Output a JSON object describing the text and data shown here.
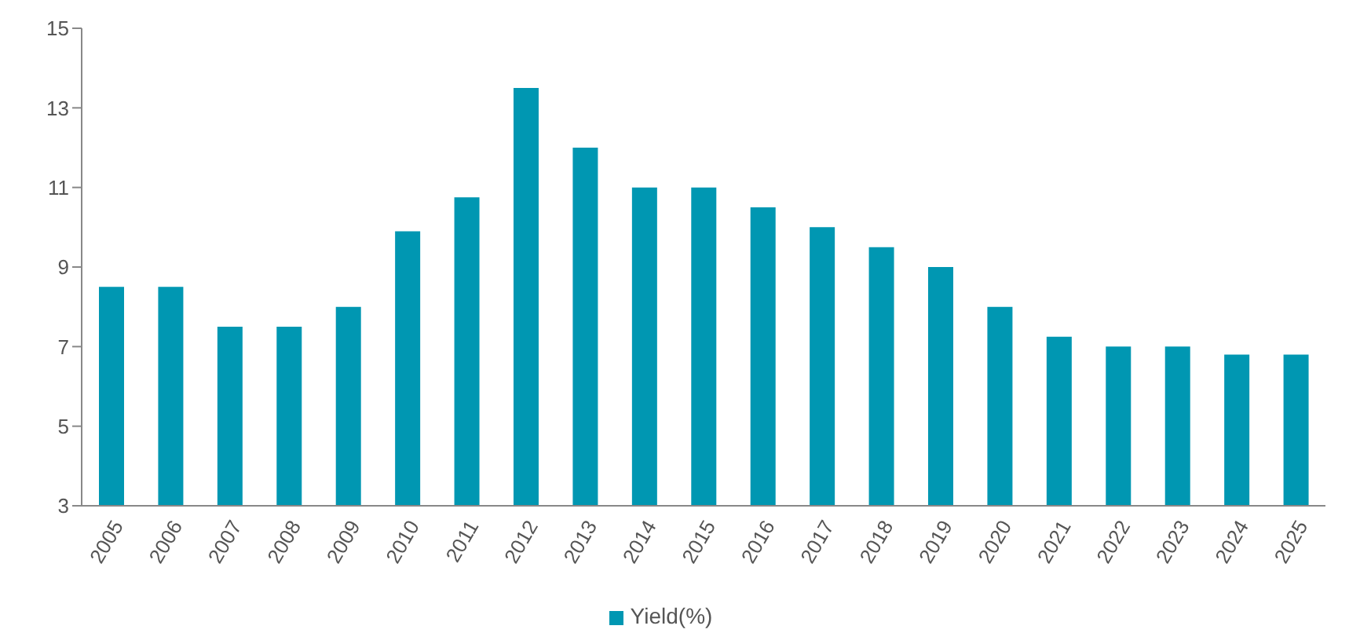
{
  "chart_data": {
    "type": "bar",
    "categories": [
      "2005",
      "2006",
      "2007",
      "2008",
      "2009",
      "2010",
      "2011",
      "2012",
      "2013",
      "2014",
      "2015",
      "2016",
      "2017",
      "2018",
      "2019",
      "2020",
      "2021",
      "2022",
      "2023",
      "2024",
      "2025"
    ],
    "series": [
      {
        "name": "Yield(%)",
        "color": "#0097b2",
        "values": [
          8.5,
          8.5,
          7.5,
          7.5,
          8.0,
          9.9,
          10.75,
          13.5,
          12.0,
          11.0,
          11.0,
          10.5,
          10.0,
          9.5,
          9.0,
          8.0,
          7.25,
          7.0,
          7.0,
          6.8,
          6.8
        ]
      }
    ],
    "ylim": [
      3,
      15
    ],
    "yticks": [
      3,
      5,
      7,
      9,
      11,
      13,
      15
    ],
    "grid": false,
    "legend": "bottom"
  }
}
